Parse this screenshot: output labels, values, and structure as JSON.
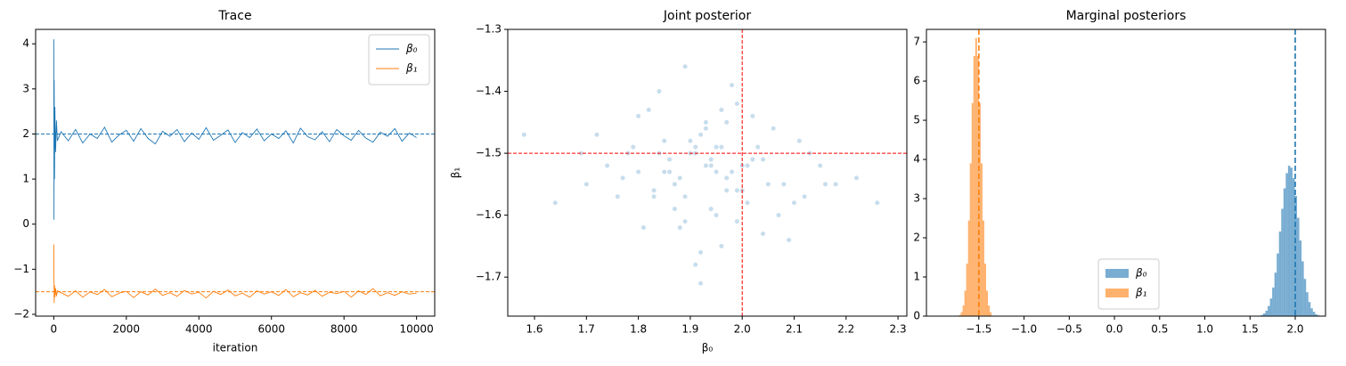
{
  "chart_data": [
    {
      "type": "line",
      "title": "Trace",
      "xlabel": "iteration",
      "x": [
        0,
        5,
        10,
        20,
        30,
        50,
        75,
        100,
        200,
        400,
        600,
        800,
        1000,
        1200,
        1400,
        1600,
        1800,
        2000,
        2200,
        2400,
        2600,
        2800,
        3000,
        3200,
        3400,
        3600,
        3800,
        4000,
        4200,
        4400,
        4600,
        4800,
        5000,
        5200,
        5400,
        5600,
        5800,
        6000,
        6200,
        6400,
        6600,
        6800,
        7000,
        7200,
        7400,
        7600,
        7800,
        8000,
        8200,
        8400,
        8600,
        8800,
        9000,
        9200,
        9400,
        9600,
        9800,
        10000
      ],
      "series": [
        {
          "name": "β₀",
          "color": "#1f77b4",
          "values": [
            4.1,
            0.1,
            3.2,
            1.0,
            2.6,
            1.6,
            2.3,
            1.85,
            2.05,
            1.85,
            2.1,
            1.8,
            2.0,
            1.9,
            2.15,
            1.82,
            1.98,
            2.08,
            1.84,
            2.12,
            1.9,
            1.78,
            2.06,
            1.95,
            2.1,
            1.83,
            2.02,
            1.88,
            2.14,
            1.86,
            1.97,
            2.09,
            1.81,
            2.03,
            1.92,
            2.11,
            1.85,
            2.0,
            1.9,
            2.07,
            1.8,
            2.13,
            1.94,
            1.87,
            2.05,
            1.83,
            2.1,
            1.96,
            1.86,
            2.08,
            1.91,
            1.82,
            2.04,
            1.95,
            2.12,
            1.84,
            2.02,
            1.92
          ]
        },
        {
          "name": "β₁",
          "color": "#ff7f0e",
          "values": [
            -0.45,
            -1.3,
            -1.75,
            -1.35,
            -1.62,
            -1.42,
            -1.6,
            -1.48,
            -1.52,
            -1.6,
            -1.48,
            -1.62,
            -1.5,
            -1.56,
            -1.45,
            -1.61,
            -1.53,
            -1.49,
            -1.63,
            -1.5,
            -1.57,
            -1.44,
            -1.58,
            -1.52,
            -1.6,
            -1.47,
            -1.55,
            -1.51,
            -1.64,
            -1.49,
            -1.56,
            -1.46,
            -1.59,
            -1.53,
            -1.62,
            -1.48,
            -1.55,
            -1.5,
            -1.58,
            -1.45,
            -1.61,
            -1.52,
            -1.57,
            -1.47,
            -1.6,
            -1.51,
            -1.54,
            -1.49,
            -1.62,
            -1.48,
            -1.56,
            -1.43,
            -1.59,
            -1.52,
            -1.58,
            -1.5,
            -1.55,
            -1.53
          ]
        }
      ],
      "ref_lines": [
        {
          "axis": "y",
          "value": 2,
          "color": "#1f77b4"
        },
        {
          "axis": "y",
          "value": -1.5,
          "color": "#ff7f0e"
        }
      ],
      "xlim": [
        -500,
        10500
      ],
      "ylim": [
        -2.04,
        4.32
      ],
      "xticks": [
        0,
        2000,
        4000,
        6000,
        8000,
        10000
      ],
      "yticks": [
        {
          "value": -2,
          "label": "−2"
        },
        {
          "value": -1,
          "label": "−1"
        },
        0,
        1,
        2,
        3,
        4
      ],
      "legend": "upper right"
    },
    {
      "type": "scatter",
      "title": "Joint posterior",
      "xlabel": "β₀",
      "ylabel": "β₁",
      "color": "#1f77b4",
      "x": [
        1.93,
        1.85,
        2.01,
        1.78,
        1.97,
        2.08,
        1.89,
        1.95,
        1.72,
        2.12,
        1.99,
        1.88,
        1.91,
        2.04,
        1.83,
        1.96,
        2.15,
        1.8,
        1.94,
        2.02,
        1.87,
        1.69,
        2.06,
        1.92,
        1.98,
        1.84,
        2.1,
        1.9,
        1.76,
        2.0,
        1.95,
        1.86,
        2.18,
        1.93,
        1.81,
        2.03,
        1.97,
        1.89,
        1.74,
        2.07,
        1.92,
        1.99,
        1.85,
        2.13,
        1.64,
        1.96,
        1.91,
        2.05,
        1.79,
        1.94,
        2.22,
        1.88,
        1.98,
        1.83,
        2.01,
        1.93,
        1.7,
        2.09,
        1.9,
        1.86,
        2.26,
        1.95,
        1.82,
        1.97,
        2.04,
        1.87,
        1.92,
        1.77,
        2.11,
        1.99,
        1.58,
        1.94,
        1.89,
        2.02,
        1.84,
        1.96,
        2.16,
        1.91,
        1.8,
        2.0
      ],
      "values": [
        -1.52,
        -1.48,
        -1.58,
        -1.5,
        -1.45,
        -1.55,
        -1.61,
        -1.53,
        -1.47,
        -1.57,
        -1.42,
        -1.54,
        -1.5,
        -1.63,
        -1.56,
        -1.49,
        -1.52,
        -1.44,
        -1.59,
        -1.51,
        -1.55,
        -1.5,
        -1.46,
        -1.66,
        -1.53,
        -1.4,
        -1.58,
        -1.48,
        -1.57,
        -1.52,
        -1.6,
        -1.51,
        -1.55,
        -1.45,
        -1.62,
        -1.49,
        -1.54,
        -1.36,
        -1.52,
        -1.6,
        -1.47,
        -1.56,
        -1.53,
        -1.5,
        -1.58,
        -1.43,
        -1.68,
        -1.55,
        -1.49,
        -1.51,
        -1.54,
        -1.62,
        -1.39,
        -1.57,
        -1.52,
        -1.46,
        -1.55,
        -1.64,
        -1.5,
        -1.53,
        -1.58,
        -1.49,
        -1.43,
        -1.56,
        -1.51,
        -1.59,
        -1.71,
        -1.54,
        -1.48,
        -1.61,
        -1.47,
        -1.52,
        -1.57,
        -1.44,
        -1.5,
        -1.65,
        -1.55,
        -1.49,
        -1.53,
        -1.56
      ],
      "ref_lines": [
        {
          "axis": "x",
          "value": 2,
          "color": "#ff0000"
        },
        {
          "axis": "y",
          "value": -1.5,
          "color": "#ff0000"
        }
      ],
      "xlim": [
        1.5485,
        2.317
      ],
      "ylim": [
        -1.763,
        -1.3
      ],
      "xticks": [
        1.6,
        1.7,
        1.8,
        1.9,
        {
          "value": 2,
          "label": "2.0"
        },
        2.1,
        2.2,
        2.3
      ],
      "yticks": [
        {
          "value": -1.3,
          "label": "−1.3"
        },
        {
          "value": -1.4,
          "label": "−1.4"
        },
        {
          "value": -1.5,
          "label": "−1.5"
        },
        {
          "value": -1.6,
          "label": "−1.6"
        },
        {
          "value": -1.7,
          "label": "−1.7"
        }
      ]
    },
    {
      "type": "histogram",
      "title": "Marginal posteriors",
      "series": [
        {
          "name": "β₀",
          "color": "#1f77b4",
          "bins": [
            1.62,
            1.645,
            1.67,
            1.695,
            1.72,
            1.745,
            1.77,
            1.795,
            1.82,
            1.845,
            1.87,
            1.895,
            1.92,
            1.945,
            1.97,
            1.995,
            2.02,
            2.045,
            2.07,
            2.095,
            2.12,
            2.145,
            2.17,
            2.195,
            2.22,
            2.245,
            2.27
          ],
          "values": [
            0.03,
            0.07,
            0.14,
            0.26,
            0.45,
            0.73,
            1.11,
            1.6,
            2.16,
            2.74,
            3.26,
            3.65,
            3.84,
            3.79,
            3.52,
            3.07,
            2.51,
            1.93,
            1.4,
            0.95,
            0.61,
            0.36,
            0.2,
            0.11,
            0.05,
            0.02
          ]
        },
        {
          "name": "β₁",
          "color": "#ff7f0e",
          "bins": [
            -1.74,
            -1.72,
            -1.7,
            -1.68,
            -1.66,
            -1.64,
            -1.62,
            -1.6,
            -1.58,
            -1.56,
            -1.54,
            -1.52,
            -1.5,
            -1.48,
            -1.46,
            -1.44,
            -1.42,
            -1.4,
            -1.38,
            -1.36
          ],
          "values": [
            0.01,
            0.03,
            0.1,
            0.27,
            0.65,
            1.34,
            2.44,
            3.9,
            5.44,
            6.64,
            7.1,
            6.64,
            5.44,
            3.9,
            2.44,
            1.34,
            0.65,
            0.27,
            0.1
          ]
        }
      ],
      "ref_lines": [
        {
          "axis": "x",
          "value": 2,
          "color": "#1f77b4"
        },
        {
          "axis": "x",
          "value": -1.5,
          "color": "#ff7f0e"
        }
      ],
      "xlim": [
        -2.08,
        2.335
      ],
      "ylim": [
        0,
        7.32
      ],
      "xticks": [
        {
          "value": -1.5,
          "label": "−1.5"
        },
        {
          "value": -1,
          "label": "−1.0"
        },
        {
          "value": -0.5,
          "label": "−0.5"
        },
        {
          "value": 0,
          "label": "0.0"
        },
        0.5,
        {
          "value": 1,
          "label": "1.0"
        },
        1.5,
        {
          "value": 2,
          "label": "2.0"
        }
      ],
      "yticks": [
        0,
        1,
        2,
        3,
        4,
        5,
        6,
        7
      ],
      "legend": "lower center"
    }
  ]
}
